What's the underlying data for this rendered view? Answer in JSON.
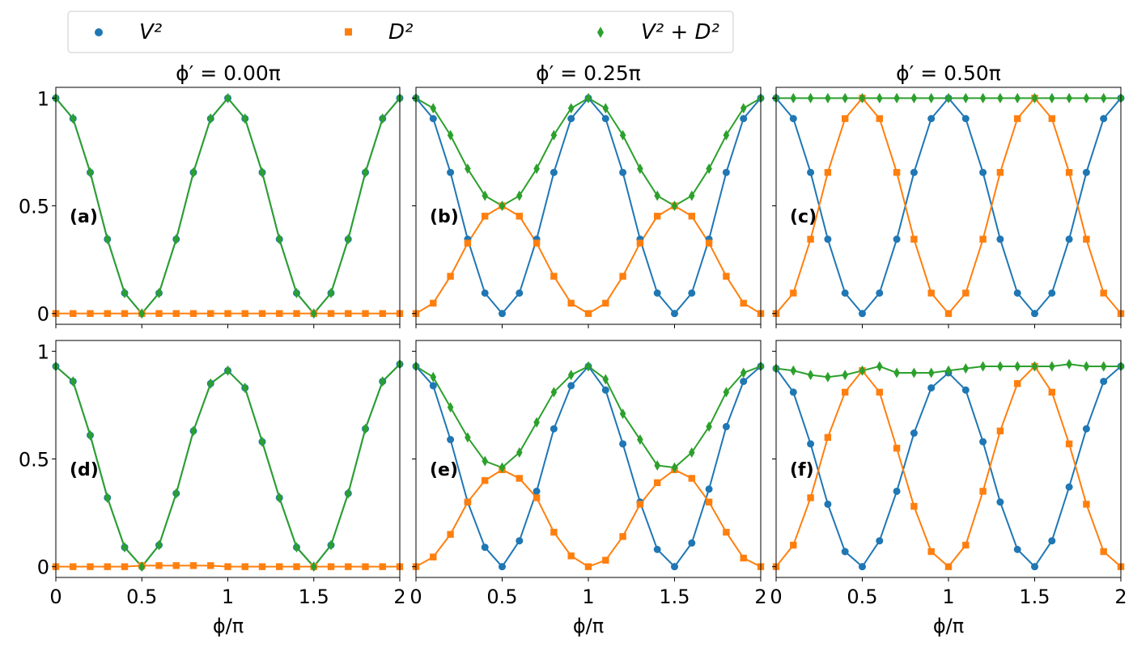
{
  "figure": {
    "legend": [
      {
        "key": "V2",
        "label": "V²",
        "color": "#1f77b4",
        "marker": "circle"
      },
      {
        "key": "D2",
        "label": "D²",
        "color": "#ff7f0e",
        "marker": "square"
      },
      {
        "key": "S",
        "label": "V² + D²",
        "color": "#2ca02c",
        "marker": "diamond"
      }
    ],
    "column_titles": [
      "ϕ′ = 0.00π",
      "ϕ′ = 0.25π",
      "ϕ′ = 0.50π"
    ],
    "xlabel": "ϕ/π"
  },
  "chart_data": [
    {
      "panel": "(a)",
      "type": "scatter",
      "title": "ϕ′ = 0.00π",
      "xlim": [
        0,
        2
      ],
      "ylim": [
        -0.05,
        1.05
      ],
      "xticks": [
        "0",
        "0.5",
        "1",
        "1.5",
        "2"
      ],
      "yticks": [
        "0",
        "0.5",
        "1"
      ],
      "x": [
        0,
        0.1,
        0.2,
        0.3,
        0.4,
        0.5,
        0.6,
        0.7,
        0.8,
        0.9,
        1.0,
        1.1,
        1.2,
        1.3,
        1.4,
        1.5,
        1.6,
        1.7,
        1.8,
        1.9,
        2.0
      ],
      "series": [
        {
          "name": "V²",
          "values": [
            1,
            0.905,
            0.655,
            0.345,
            0.095,
            0,
            0.095,
            0.345,
            0.655,
            0.905,
            1,
            0.905,
            0.655,
            0.345,
            0.095,
            0,
            0.095,
            0.345,
            0.655,
            0.905,
            1
          ]
        },
        {
          "name": "D²",
          "values": [
            0,
            0,
            0,
            0,
            0,
            0,
            0,
            0,
            0,
            0,
            0,
            0,
            0,
            0,
            0,
            0,
            0,
            0,
            0,
            0,
            0
          ]
        },
        {
          "name": "V² + D²",
          "values": [
            1,
            0.905,
            0.655,
            0.345,
            0.095,
            0,
            0.095,
            0.345,
            0.655,
            0.905,
            1,
            0.905,
            0.655,
            0.345,
            0.095,
            0,
            0.095,
            0.345,
            0.655,
            0.905,
            1
          ]
        }
      ]
    },
    {
      "panel": "(b)",
      "type": "scatter",
      "title": "ϕ′ = 0.25π",
      "xlim": [
        0,
        2
      ],
      "ylim": [
        -0.05,
        1.05
      ],
      "xticks": [
        "0",
        "0.5",
        "1",
        "1.5",
        "2"
      ],
      "yticks": [
        "0",
        "0.5",
        "1"
      ],
      "x": [
        0,
        0.1,
        0.2,
        0.3,
        0.4,
        0.5,
        0.6,
        0.7,
        0.8,
        0.9,
        1.0,
        1.1,
        1.2,
        1.3,
        1.4,
        1.5,
        1.6,
        1.7,
        1.8,
        1.9,
        2.0
      ],
      "series": [
        {
          "name": "V²",
          "values": [
            1,
            0.905,
            0.655,
            0.345,
            0.095,
            0,
            0.095,
            0.345,
            0.655,
            0.905,
            1,
            0.905,
            0.655,
            0.345,
            0.095,
            0,
            0.095,
            0.345,
            0.655,
            0.905,
            1
          ]
        },
        {
          "name": "D²",
          "values": [
            0,
            0.048,
            0.173,
            0.327,
            0.452,
            0.5,
            0.452,
            0.327,
            0.173,
            0.048,
            0,
            0.048,
            0.173,
            0.327,
            0.452,
            0.5,
            0.452,
            0.327,
            0.173,
            0.048,
            0
          ]
        },
        {
          "name": "V² + D²",
          "values": [
            1,
            0.953,
            0.828,
            0.672,
            0.547,
            0.5,
            0.547,
            0.672,
            0.828,
            0.953,
            1,
            0.953,
            0.828,
            0.672,
            0.547,
            0.5,
            0.547,
            0.672,
            0.828,
            0.953,
            1
          ]
        }
      ]
    },
    {
      "panel": "(c)",
      "type": "scatter",
      "title": "ϕ′ = 0.50π",
      "xlim": [
        0,
        2
      ],
      "ylim": [
        -0.05,
        1.05
      ],
      "xticks": [
        "0",
        "0.5",
        "1",
        "1.5",
        "2"
      ],
      "yticks": [
        "0",
        "0.5",
        "1"
      ],
      "x": [
        0,
        0.1,
        0.2,
        0.3,
        0.4,
        0.5,
        0.6,
        0.7,
        0.8,
        0.9,
        1.0,
        1.1,
        1.2,
        1.3,
        1.4,
        1.5,
        1.6,
        1.7,
        1.8,
        1.9,
        2.0
      ],
      "series": [
        {
          "name": "V²",
          "values": [
            1,
            0.905,
            0.655,
            0.345,
            0.095,
            0,
            0.095,
            0.345,
            0.655,
            0.905,
            1,
            0.905,
            0.655,
            0.345,
            0.095,
            0,
            0.095,
            0.345,
            0.655,
            0.905,
            1
          ]
        },
        {
          "name": "D²",
          "values": [
            0,
            0.095,
            0.345,
            0.655,
            0.905,
            1,
            0.905,
            0.655,
            0.345,
            0.095,
            0,
            0.095,
            0.345,
            0.655,
            0.905,
            1,
            0.905,
            0.655,
            0.345,
            0.095,
            0
          ]
        },
        {
          "name": "V² + D²",
          "values": [
            1,
            1,
            1,
            1,
            1,
            1,
            1,
            1,
            1,
            1,
            1,
            1,
            1,
            1,
            1,
            1,
            1,
            1,
            1,
            1,
            1
          ]
        }
      ]
    },
    {
      "panel": "(d)",
      "type": "scatter",
      "title": "",
      "xlim": [
        0,
        2
      ],
      "ylim": [
        -0.05,
        1.05
      ],
      "xticks": [
        "0",
        "0.5",
        "1",
        "1.5",
        "2"
      ],
      "yticks": [
        "0",
        "0.5",
        "1"
      ],
      "xlabel": "ϕ/π",
      "x": [
        0,
        0.1,
        0.2,
        0.3,
        0.4,
        0.5,
        0.6,
        0.7,
        0.8,
        0.9,
        1.0,
        1.1,
        1.2,
        1.3,
        1.4,
        1.5,
        1.6,
        1.7,
        1.8,
        1.9,
        2.0
      ],
      "series": [
        {
          "name": "V²",
          "values": [
            0.93,
            0.86,
            0.61,
            0.32,
            0.09,
            0.0,
            0.1,
            0.34,
            0.63,
            0.85,
            0.91,
            0.83,
            0.58,
            0.32,
            0.09,
            0.0,
            0.1,
            0.34,
            0.64,
            0.86,
            0.94
          ]
        },
        {
          "name": "D²",
          "values": [
            0.0,
            0.0,
            0.0,
            0.0,
            0.0,
            0.005,
            0.005,
            0.005,
            0.005,
            0.005,
            0.0,
            0.0,
            0.0,
            0.0,
            0.0,
            0.0,
            0.0,
            0.0,
            0.0,
            0.0,
            0.0
          ]
        },
        {
          "name": "V² + D²",
          "values": [
            0.93,
            0.86,
            0.61,
            0.32,
            0.09,
            0.0,
            0.1,
            0.34,
            0.63,
            0.85,
            0.91,
            0.83,
            0.58,
            0.32,
            0.09,
            0.0,
            0.1,
            0.34,
            0.64,
            0.86,
            0.94
          ]
        }
      ]
    },
    {
      "panel": "(e)",
      "type": "scatter",
      "title": "",
      "xlim": [
        0,
        2
      ],
      "ylim": [
        -0.05,
        1.05
      ],
      "xticks": [
        "0",
        "0.5",
        "1",
        "1.5",
        "2"
      ],
      "yticks": [
        "0",
        "0.5",
        "1"
      ],
      "xlabel": "ϕ/π",
      "x": [
        0,
        0.1,
        0.2,
        0.3,
        0.4,
        0.5,
        0.6,
        0.7,
        0.8,
        0.9,
        1.0,
        1.1,
        1.2,
        1.3,
        1.4,
        1.5,
        1.6,
        1.7,
        1.8,
        1.9,
        2.0
      ],
      "series": [
        {
          "name": "V²",
          "values": [
            0.93,
            0.84,
            0.59,
            0.3,
            0.09,
            0.0,
            0.12,
            0.35,
            0.64,
            0.84,
            0.93,
            0.82,
            0.57,
            0.3,
            0.08,
            0.0,
            0.11,
            0.36,
            0.65,
            0.86,
            0.93
          ]
        },
        {
          "name": "D²",
          "values": [
            0.0,
            0.045,
            0.15,
            0.3,
            0.4,
            0.45,
            0.41,
            0.32,
            0.16,
            0.05,
            0.0,
            0.03,
            0.14,
            0.29,
            0.39,
            0.45,
            0.41,
            0.3,
            0.16,
            0.04,
            0.0
          ]
        },
        {
          "name": "V² + D²",
          "values": [
            0.93,
            0.88,
            0.74,
            0.6,
            0.49,
            0.46,
            0.53,
            0.67,
            0.81,
            0.89,
            0.93,
            0.87,
            0.71,
            0.59,
            0.47,
            0.46,
            0.53,
            0.65,
            0.81,
            0.9,
            0.93
          ]
        }
      ]
    },
    {
      "panel": "(f)",
      "type": "scatter",
      "title": "",
      "xlim": [
        0,
        2
      ],
      "ylim": [
        -0.05,
        1.05
      ],
      "xticks": [
        "0",
        "0.5",
        "1",
        "1.5",
        "2"
      ],
      "yticks": [
        "0",
        "0.5",
        "1"
      ],
      "xlabel": "ϕ/π",
      "x": [
        0,
        0.1,
        0.2,
        0.3,
        0.4,
        0.5,
        0.6,
        0.7,
        0.8,
        0.9,
        1.0,
        1.1,
        1.2,
        1.3,
        1.4,
        1.5,
        1.6,
        1.7,
        1.8,
        1.9,
        2.0
      ],
      "series": [
        {
          "name": "V²",
          "values": [
            0.92,
            0.81,
            0.57,
            0.29,
            0.07,
            0.0,
            0.12,
            0.35,
            0.62,
            0.83,
            0.9,
            0.82,
            0.58,
            0.3,
            0.08,
            0.0,
            0.12,
            0.37,
            0.64,
            0.86,
            0.93
          ]
        },
        {
          "name": "D²",
          "values": [
            0.0,
            0.1,
            0.32,
            0.6,
            0.81,
            0.91,
            0.81,
            0.55,
            0.28,
            0.07,
            0.0,
            0.1,
            0.35,
            0.63,
            0.85,
            0.93,
            0.81,
            0.57,
            0.29,
            0.07,
            0.0
          ]
        },
        {
          "name": "V² + D²",
          "values": [
            0.92,
            0.91,
            0.89,
            0.88,
            0.89,
            0.91,
            0.93,
            0.9,
            0.9,
            0.9,
            0.91,
            0.92,
            0.93,
            0.93,
            0.93,
            0.93,
            0.93,
            0.94,
            0.93,
            0.93,
            0.93
          ]
        }
      ]
    }
  ]
}
